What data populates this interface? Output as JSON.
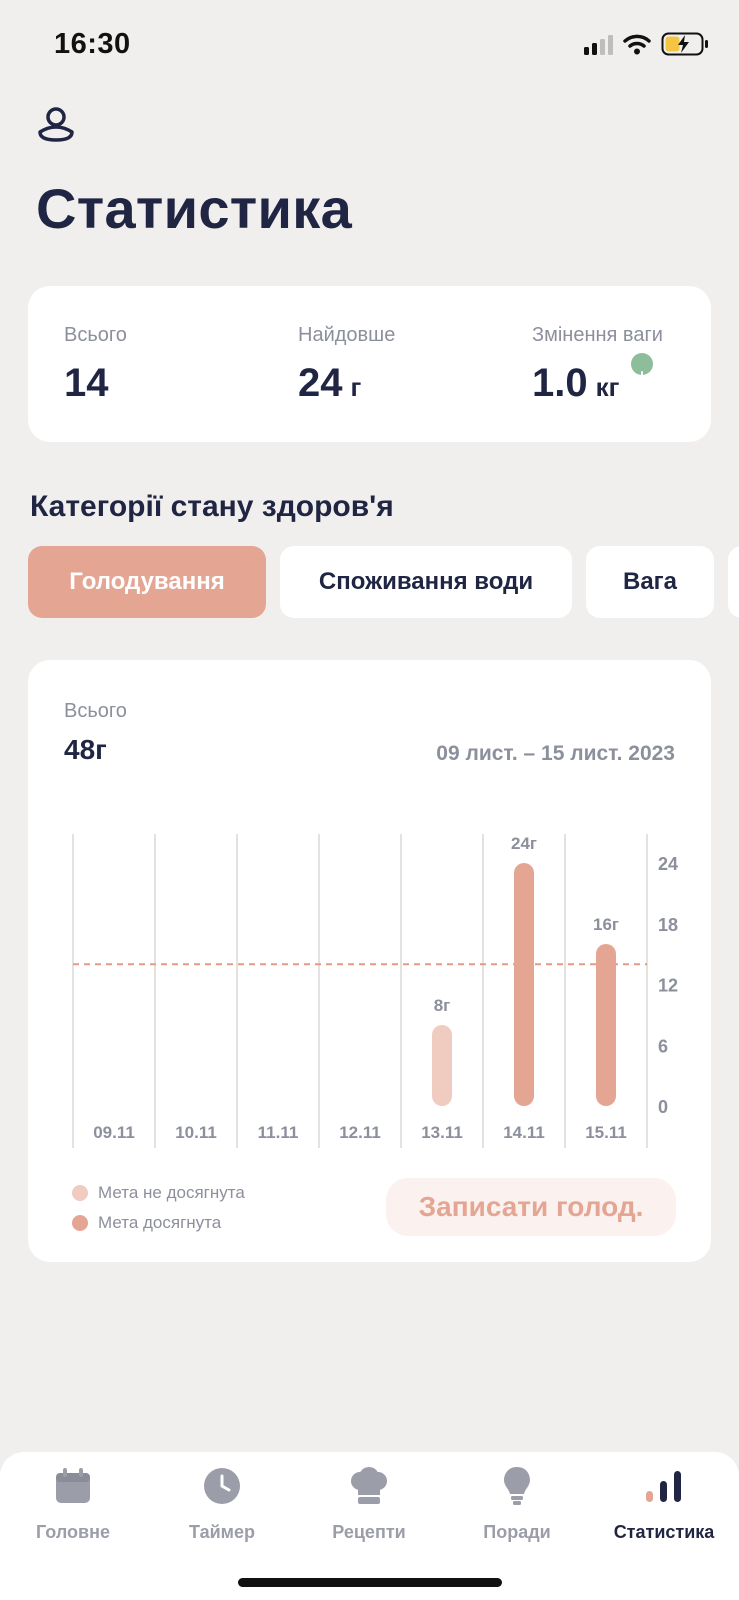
{
  "status_bar": {
    "time": "16:30"
  },
  "header": {
    "title": "Статистика"
  },
  "summary": [
    {
      "label": "Всього",
      "value": "14",
      "unit": ""
    },
    {
      "label": "Найдовше",
      "value": "24",
      "unit": "г"
    },
    {
      "label": "Змінення ваги",
      "value": "1.0",
      "unit": "кг",
      "trend": "down"
    }
  ],
  "categories_title": "Категорії стану здоров'я",
  "tabs": [
    {
      "label": "Голодування",
      "active": true
    },
    {
      "label": "Споживання води",
      "active": false
    },
    {
      "label": "Вага",
      "active": false
    }
  ],
  "chart_card": {
    "total_label": "Всього",
    "total_value": "48г",
    "date_range": "09 лист. – 15 лист. 2023",
    "legend": [
      {
        "label": "Мета не досягнута",
        "color": "#f0cbc0"
      },
      {
        "label": "Мета досягнута",
        "color": "#e5a593"
      }
    ],
    "record_button": "Записати голод."
  },
  "chart_data": {
    "type": "bar",
    "categories": [
      "09.11",
      "10.11",
      "11.11",
      "12.11",
      "13.11",
      "14.11",
      "15.11"
    ],
    "values": [
      0,
      0,
      0,
      0,
      8,
      24,
      16
    ],
    "data_labels": [
      "",
      "",
      "",
      "",
      "8г",
      "24г",
      "16г"
    ],
    "goal_met": [
      false,
      false,
      false,
      false,
      false,
      true,
      true
    ],
    "goal_line": 14,
    "yticks": [
      0,
      6,
      12,
      18,
      24
    ],
    "ylim": [
      0,
      24
    ],
    "grid": true,
    "colors": {
      "not_met": "#f0cbc0",
      "met": "#e5a593",
      "goal_line": "#e59a87"
    }
  },
  "bottom_nav": [
    {
      "label": "Головне",
      "icon": "calendar-icon",
      "active": false
    },
    {
      "label": "Таймер",
      "icon": "clock-icon",
      "active": false
    },
    {
      "label": "Рецепти",
      "icon": "chef-hat-icon",
      "active": false
    },
    {
      "label": "Поради",
      "icon": "lightbulb-icon",
      "active": false
    },
    {
      "label": "Статистика",
      "icon": "bar-chart-icon",
      "active": true
    }
  ]
}
